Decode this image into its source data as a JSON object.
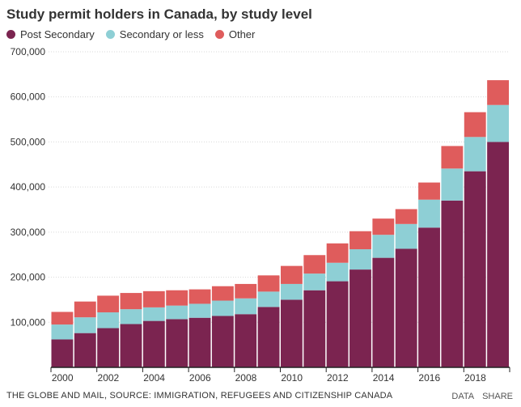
{
  "chart_data": {
    "type": "bar",
    "stacked": true,
    "title": "Study permit holders in Canada, by study level",
    "categories": [
      "2000",
      "2001",
      "2002",
      "2003",
      "2004",
      "2005",
      "2006",
      "2007",
      "2008",
      "2009",
      "2010",
      "2011",
      "2012",
      "2013",
      "2014",
      "2015",
      "2016",
      "2017",
      "2018",
      "2019"
    ],
    "x_tick_labels": [
      "2000",
      "2002",
      "2004",
      "2006",
      "2008",
      "2010",
      "2012",
      "2014",
      "2016",
      "2018"
    ],
    "series": [
      {
        "name": "Post Secondary",
        "color": "#7b2450",
        "values": [
          62000,
          76000,
          87000,
          96000,
          103000,
          107000,
          110000,
          114000,
          118000,
          134000,
          150000,
          171000,
          191000,
          217000,
          243000,
          263000,
          310000,
          370000,
          435000,
          500000
        ]
      },
      {
        "name": "Secondary or less",
        "color": "#8ecfd5",
        "values": [
          33000,
          35000,
          35000,
          33000,
          30000,
          30000,
          31000,
          34000,
          35000,
          34000,
          35000,
          37000,
          41000,
          45000,
          51000,
          55000,
          62000,
          71000,
          76000,
          82000
        ]
      },
      {
        "name": "Other",
        "color": "#df5c5c",
        "values": [
          28000,
          35000,
          37000,
          36000,
          36000,
          34000,
          32000,
          32000,
          32000,
          36000,
          40000,
          41000,
          43000,
          40000,
          36000,
          33000,
          38000,
          50000,
          55000,
          55000
        ]
      }
    ],
    "ylim": [
      0,
      700000
    ],
    "y_ticks": [
      100000,
      200000,
      300000,
      400000,
      500000,
      600000,
      700000
    ],
    "y_tick_labels": [
      "100,000",
      "200,000",
      "300,000",
      "400,000",
      "500,000",
      "600,000",
      "700,000"
    ],
    "grid": true,
    "legend_position": "top-left",
    "xlabel": "",
    "ylabel": ""
  },
  "footer": {
    "source": "THE GLOBE AND MAIL, SOURCE: IMMIGRATION, REFUGEES AND CITIZENSHIP CANADA",
    "data_label": "DATA",
    "share_label": "SHARE"
  }
}
